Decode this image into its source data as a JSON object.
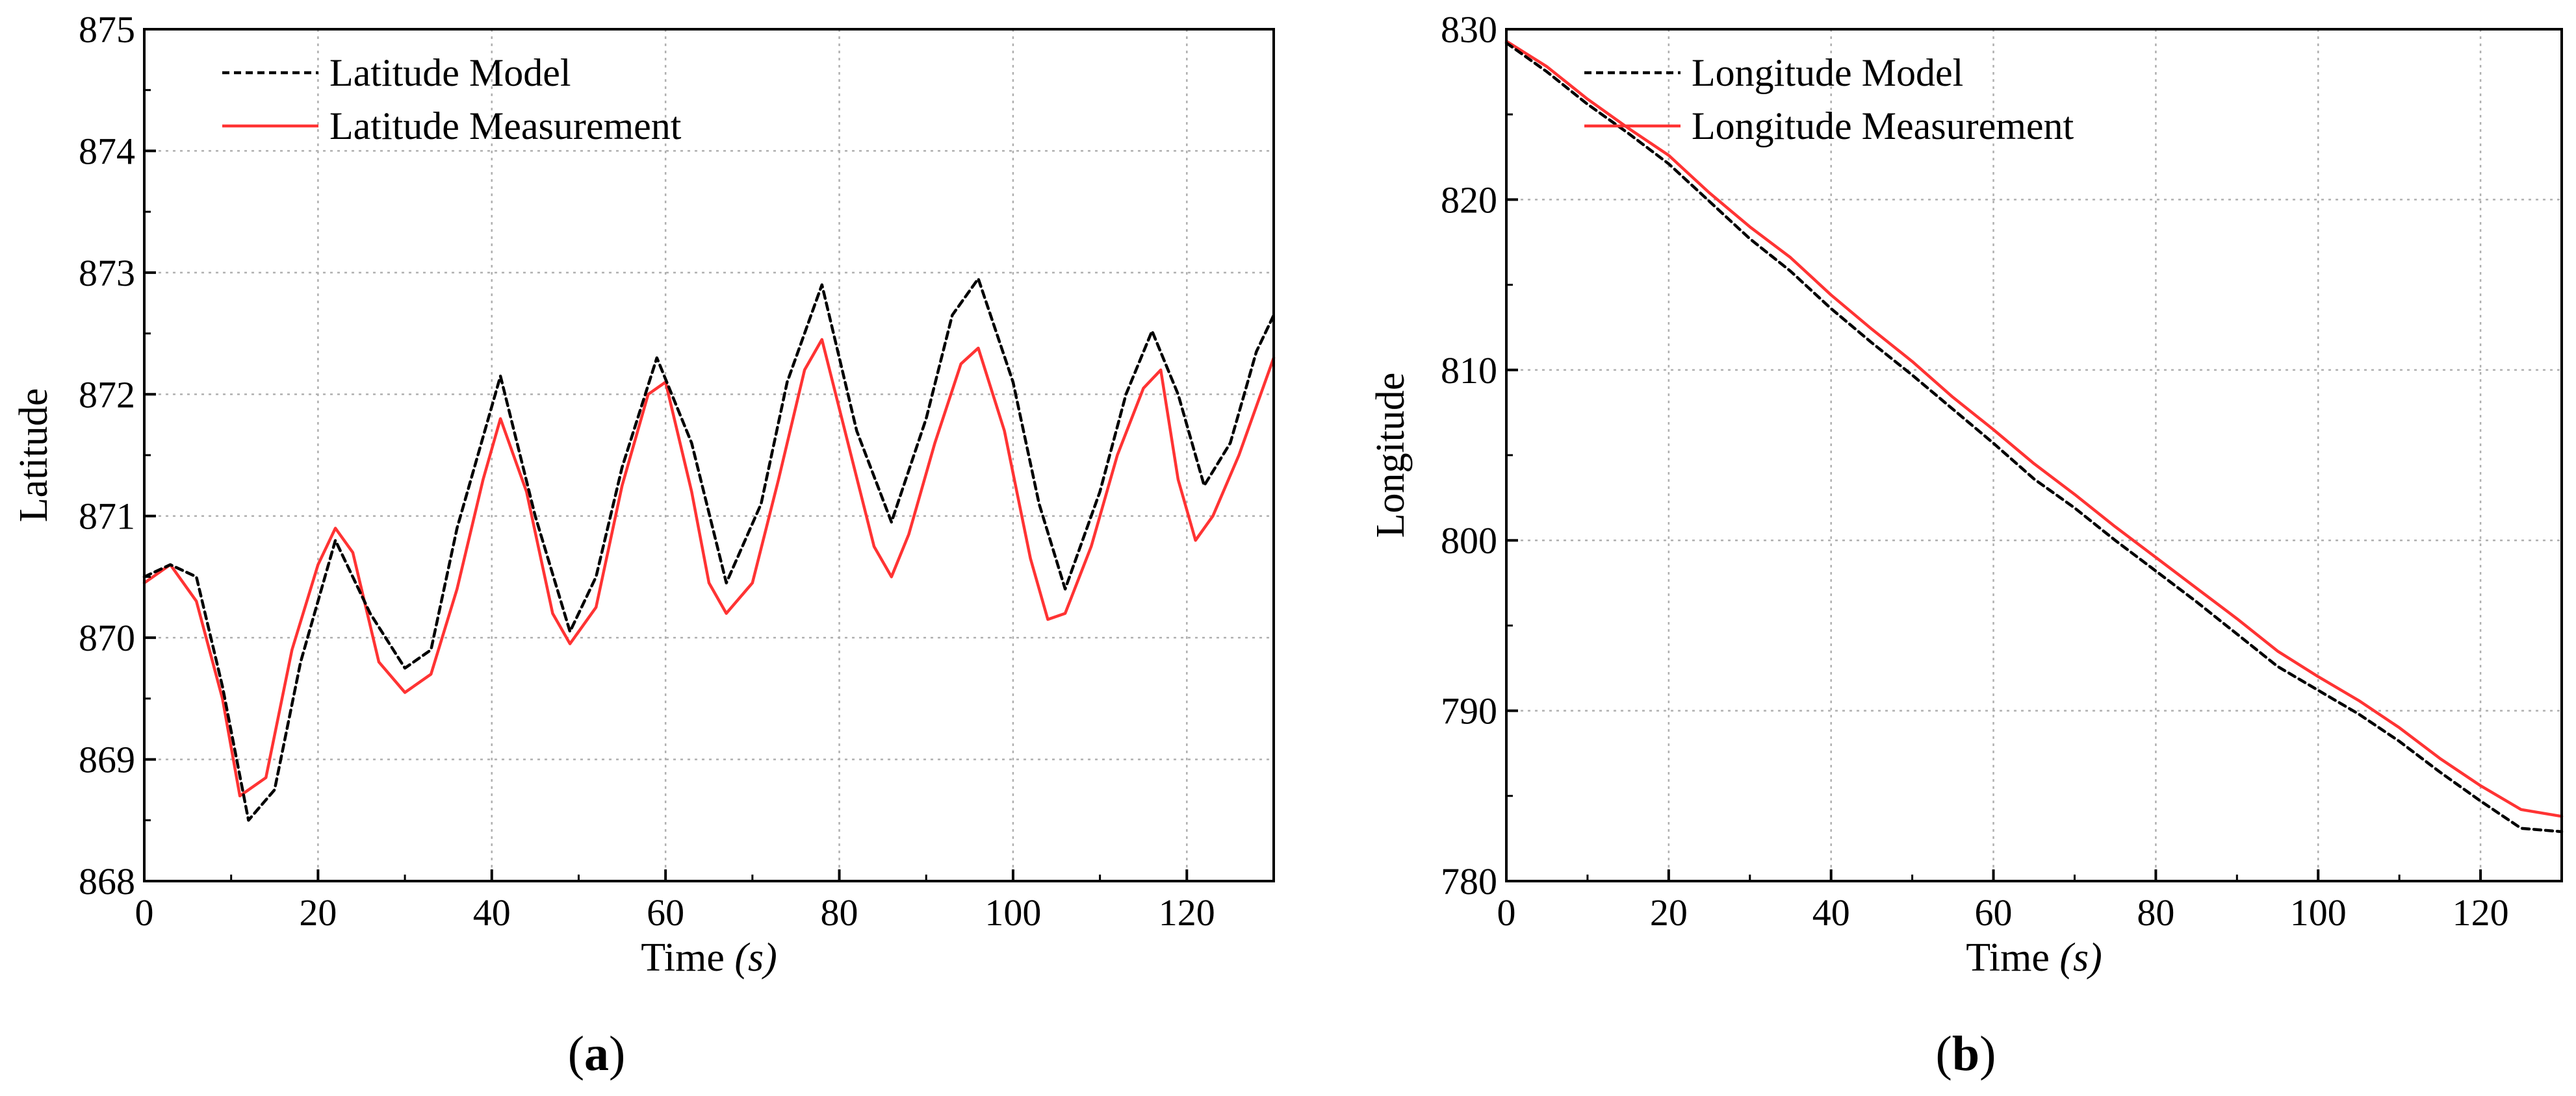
{
  "colors": {
    "model": "#000000",
    "measurement": "#ff3333",
    "grid": "#b0b0b0",
    "axis": "#000000",
    "background": "#ffffff"
  },
  "panels": [
    {
      "label_open": "(",
      "label_letter": "a",
      "label_close": ")"
    },
    {
      "label_open": "(",
      "label_letter": "b",
      "label_close": ")"
    }
  ],
  "chart_data": [
    {
      "type": "line",
      "xlabel_main": "Time ",
      "xlabel_unit": "(s)",
      "ylabel": "Latitude",
      "xlim": [
        0,
        130
      ],
      "ylim": [
        868,
        875
      ],
      "xticks": [
        "0",
        "20",
        "40",
        "60",
        "80",
        "100",
        "120"
      ],
      "yticks": [
        "868",
        "869",
        "870",
        "871",
        "872",
        "873",
        "874",
        "875"
      ],
      "grid": true,
      "legend_position": "top-left",
      "series": [
        {
          "name": "Latitude Model",
          "style": "dashed",
          "x": [
            0,
            3,
            6,
            9,
            12,
            15,
            18,
            22,
            26,
            30,
            33,
            36,
            41,
            45,
            49,
            52,
            55,
            59,
            63,
            67,
            71,
            74,
            78,
            82,
            86,
            90,
            93,
            96,
            100,
            103,
            106,
            110,
            113,
            116,
            119,
            122,
            125,
            128,
            130
          ],
          "y": [
            870.5,
            870.6,
            870.5,
            869.6,
            868.5,
            868.75,
            869.8,
            870.8,
            870.2,
            869.75,
            869.9,
            870.9,
            872.15,
            871.0,
            870.05,
            870.5,
            871.4,
            872.3,
            871.6,
            870.45,
            871.1,
            872.1,
            872.9,
            871.7,
            870.95,
            871.8,
            872.65,
            872.95,
            872.1,
            871.1,
            870.4,
            871.2,
            872.0,
            872.52,
            872.0,
            871.25,
            871.6,
            872.35,
            872.65
          ]
        },
        {
          "name": "Latitude Measurement",
          "style": "solid",
          "x": [
            0,
            3,
            6,
            9,
            11,
            14,
            17,
            20,
            22,
            24,
            27,
            30,
            33,
            36,
            39,
            41,
            44,
            47,
            49,
            52,
            55,
            58,
            60,
            63,
            65,
            67,
            70,
            73,
            76,
            78,
            81,
            84,
            86,
            88,
            91,
            94,
            96,
            99,
            102,
            104,
            106,
            109,
            112,
            115,
            117,
            119,
            121,
            123,
            126,
            130
          ],
          "y": [
            870.45,
            870.6,
            870.3,
            869.5,
            868.7,
            868.85,
            869.9,
            870.6,
            870.9,
            870.7,
            869.8,
            869.55,
            869.7,
            870.4,
            871.3,
            871.8,
            871.2,
            870.2,
            869.95,
            870.25,
            871.25,
            872.0,
            872.1,
            871.2,
            870.45,
            870.2,
            870.45,
            871.3,
            872.2,
            872.45,
            871.6,
            870.75,
            870.5,
            870.85,
            871.6,
            872.25,
            872.38,
            871.7,
            870.65,
            870.15,
            870.2,
            870.75,
            871.5,
            872.05,
            872.2,
            871.3,
            870.8,
            871.0,
            871.5,
            872.3
          ]
        }
      ]
    },
    {
      "type": "line",
      "xlabel_main": "Time ",
      "xlabel_unit": "(s)",
      "ylabel": "Longitude",
      "xlim": [
        0,
        130
      ],
      "ylim": [
        780,
        830
      ],
      "xticks": [
        "0",
        "20",
        "40",
        "60",
        "80",
        "100",
        "120"
      ],
      "yticks": [
        "780",
        "790",
        "800",
        "810",
        "820",
        "830"
      ],
      "grid": true,
      "legend_position": "top-left",
      "series": [
        {
          "name": "Longitude Model",
          "style": "dashed",
          "x": [
            0,
            5,
            10,
            15,
            20,
            25,
            30,
            35,
            40,
            45,
            50,
            55,
            60,
            65,
            70,
            75,
            80,
            85,
            90,
            95,
            100,
            105,
            110,
            115,
            120,
            125,
            130
          ],
          "y": [
            829.2,
            827.5,
            825.6,
            823.9,
            822.1,
            819.9,
            817.7,
            815.8,
            813.6,
            811.6,
            809.7,
            807.7,
            805.7,
            803.6,
            801.9,
            800.0,
            798.2,
            796.4,
            794.5,
            792.6,
            791.2,
            789.8,
            788.2,
            786.4,
            784.7,
            783.1,
            782.9
          ]
        },
        {
          "name": "Longitude Measurement",
          "style": "solid",
          "x": [
            0,
            5,
            10,
            15,
            20,
            25,
            30,
            35,
            40,
            45,
            50,
            55,
            60,
            65,
            70,
            75,
            80,
            85,
            90,
            95,
            100,
            105,
            110,
            115,
            120,
            125,
            130
          ],
          "y": [
            829.3,
            827.8,
            825.9,
            824.2,
            822.6,
            820.4,
            818.4,
            816.6,
            814.4,
            812.4,
            810.5,
            808.4,
            806.5,
            804.5,
            802.7,
            800.8,
            799.0,
            797.2,
            795.4,
            793.5,
            792.0,
            790.6,
            789.0,
            787.2,
            785.6,
            784.2,
            783.8
          ]
        }
      ]
    }
  ]
}
